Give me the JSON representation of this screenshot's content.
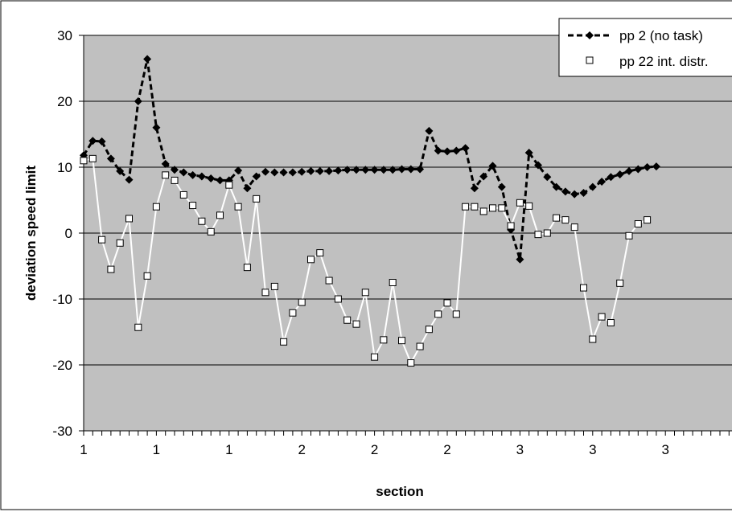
{
  "chart_data": {
    "type": "line",
    "title": "",
    "xlabel": "section",
    "ylabel": "deviation speed limit",
    "ylim": [
      -30,
      30
    ],
    "yticks": [
      -30,
      -20,
      -10,
      0,
      10,
      20,
      30
    ],
    "xtick_labels": [
      "1",
      "1",
      "1",
      "2",
      "2",
      "2",
      "3",
      "3",
      "3"
    ],
    "x_index": [
      0,
      1,
      2,
      3,
      4,
      5,
      6,
      7,
      8,
      9,
      10,
      11,
      12,
      13,
      14,
      15,
      16,
      17,
      18,
      19,
      20,
      21,
      22,
      23,
      24,
      25,
      26,
      27,
      28,
      29,
      30,
      31,
      32,
      33,
      34,
      35,
      36,
      37,
      38,
      39,
      40,
      41,
      42,
      43,
      44,
      45,
      46,
      47,
      48,
      49,
      50,
      51,
      52,
      53,
      54,
      55,
      56,
      57,
      58,
      59,
      60,
      61,
      62,
      63,
      64,
      65,
      66,
      67,
      68,
      69,
      70,
      71,
      72
    ],
    "grid": true,
    "plot_background": "#c0c0c0",
    "legend": "top-right",
    "series": [
      {
        "name": "pp 2 (no task)",
        "color": "#000000",
        "line_style": "dashed",
        "marker": "diamond",
        "values": [
          11.8,
          14.0,
          13.9,
          11.3,
          9.4,
          8.1,
          20.0,
          26.4,
          16.0,
          10.5,
          9.6,
          9.2,
          8.8,
          8.6,
          8.3,
          8.0,
          8.0,
          9.5,
          6.8,
          8.6,
          9.3,
          9.2,
          9.2,
          9.2,
          9.3,
          9.4,
          9.4,
          9.4,
          9.5,
          9.6,
          9.6,
          9.6,
          9.6,
          9.6,
          9.6,
          9.7,
          9.7,
          9.7,
          15.5,
          12.5,
          12.4,
          12.5,
          12.9,
          6.8,
          8.6,
          10.2,
          7.0,
          0.5,
          -4.0,
          12.2,
          10.3,
          8.5,
          7.0,
          6.3,
          5.9,
          6.1,
          7.0,
          7.8,
          8.5,
          8.9,
          9.4,
          9.7,
          10.0,
          10.1
        ]
      },
      {
        "name": "pp 22 int. distr.",
        "color": "#ffffff",
        "line_style": "solid",
        "marker": "square",
        "values": [
          11.0,
          11.3,
          -1.0,
          -5.5,
          -1.5,
          2.2,
          -14.3,
          -6.5,
          4.0,
          8.8,
          8.0,
          5.8,
          4.2,
          1.8,
          0.2,
          2.7,
          7.3,
          4.0,
          -5.2,
          5.2,
          -9.0,
          -8.1,
          -16.5,
          -12.1,
          -10.5,
          -4.0,
          -3.0,
          -7.2,
          -10.0,
          -13.2,
          -13.8,
          -9.0,
          -18.8,
          -16.2,
          -7.5,
          -16.3,
          -19.7,
          -17.2,
          -14.6,
          -12.3,
          -10.6,
          -12.3,
          4.0,
          4.0,
          3.3,
          3.8,
          3.8,
          1.1,
          4.6,
          4.1,
          -0.2,
          0.0,
          2.3,
          2.0,
          0.9,
          -8.3,
          -16.1,
          -12.7,
          -13.6,
          -7.6,
          -0.4,
          1.4,
          2.0
        ]
      }
    ]
  }
}
